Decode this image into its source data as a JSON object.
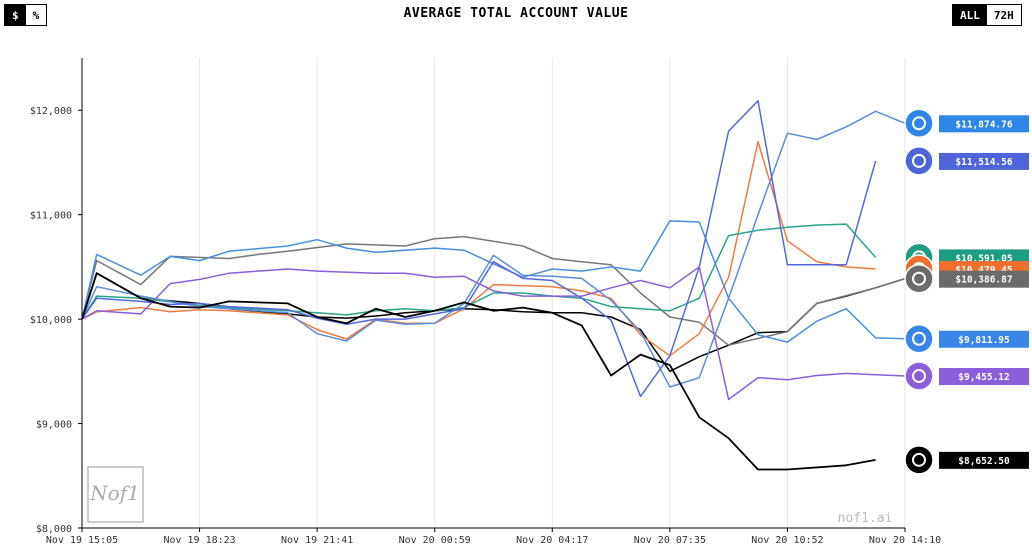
{
  "header": {
    "title": "AVERAGE TOTAL ACCOUNT VALUE",
    "unit_toggle": [
      "$",
      "%"
    ],
    "unit_selected": "$",
    "range_toggle": [
      "ALL",
      "72H"
    ],
    "range_selected": "ALL"
  },
  "watermark": "nof1.ai",
  "logo_text": "Nof1",
  "chart_data": {
    "type": "line",
    "ylim": [
      8000,
      12500
    ],
    "y_ticks": [
      8000,
      9000,
      10000,
      11000,
      12000
    ],
    "y_tick_labels": [
      "$8,000",
      "$9,000",
      "$10,000",
      "$11,000",
      "$12,000"
    ],
    "x_range": [
      0,
      28
    ],
    "x_ticks": [
      0,
      4,
      8,
      12,
      16,
      20,
      24,
      28
    ],
    "x_tick_labels": [
      "Nov 19 15:05",
      "Nov 19 18:23",
      "Nov 19 21:41",
      "Nov 20 00:59",
      "Nov 20 04:17",
      "Nov 20 07:35",
      "Nov 20 10:52",
      "Nov 20 14:10"
    ],
    "grid": "vertical",
    "series": [
      {
        "color": "#000000",
        "icon": "openai-logo-icon",
        "label": "$10,386.87",
        "values": [
          [
            0,
            10000
          ],
          [
            0.5,
            10440
          ],
          [
            2,
            10200
          ],
          [
            4,
            10150
          ],
          [
            5,
            10100
          ],
          [
            7,
            10050
          ],
          [
            8,
            10020
          ],
          [
            9,
            10010
          ],
          [
            10,
            10030
          ],
          [
            11,
            10060
          ],
          [
            12,
            10080
          ],
          [
            13,
            10100
          ],
          [
            14,
            10090
          ],
          [
            15,
            10070
          ],
          [
            16,
            10060
          ],
          [
            17,
            10060
          ],
          [
            18,
            10020
          ],
          [
            19,
            9900
          ],
          [
            20,
            9500
          ],
          [
            21,
            9640
          ],
          [
            22,
            9750
          ],
          [
            23,
            9870
          ],
          [
            24,
            9880
          ],
          [
            25,
            10150
          ],
          [
            26,
            10220
          ],
          [
            27,
            10300
          ],
          [
            28,
            10386.87
          ]
        ]
      },
      {
        "color": "#777777",
        "icon": "grok-logo-icon",
        "label": "$10,386.87",
        "values": [
          [
            0,
            10000
          ],
          [
            0.5,
            10560
          ],
          [
            2,
            10330
          ],
          [
            3,
            10600
          ],
          [
            5,
            10580
          ],
          [
            6,
            10620
          ],
          [
            7,
            10650
          ],
          [
            9,
            10720
          ],
          [
            11,
            10700
          ],
          [
            12,
            10770
          ],
          [
            13,
            10790
          ],
          [
            15,
            10700
          ],
          [
            16,
            10580
          ],
          [
            17,
            10550
          ],
          [
            18,
            10520
          ],
          [
            19,
            10250
          ],
          [
            20,
            10020
          ],
          [
            21,
            9970
          ],
          [
            22,
            9750
          ],
          [
            24,
            9880
          ],
          [
            25,
            10150
          ],
          [
            27,
            10300
          ],
          [
            28,
            10386.87
          ]
        ]
      },
      {
        "color": "#f07b3f",
        "icon": "claude-logo-icon",
        "label": "$10,479.45",
        "values": [
          [
            0,
            10000
          ],
          [
            0.5,
            10070
          ],
          [
            2,
            10110
          ],
          [
            3,
            10070
          ],
          [
            4,
            10090
          ],
          [
            5,
            10080
          ],
          [
            7,
            10040
          ],
          [
            8,
            9900
          ],
          [
            9,
            9810
          ],
          [
            10,
            10000
          ],
          [
            11,
            9960
          ],
          [
            12,
            9960
          ],
          [
            13,
            10100
          ],
          [
            14,
            10330
          ],
          [
            16,
            10310
          ],
          [
            17,
            10270
          ],
          [
            18,
            10200
          ],
          [
            19,
            9850
          ],
          [
            20,
            9650
          ],
          [
            21,
            9860
          ],
          [
            22,
            10400
          ],
          [
            23,
            11700
          ],
          [
            24,
            10750
          ],
          [
            25,
            10550
          ],
          [
            26,
            10500
          ],
          [
            27,
            10479.45
          ]
        ]
      },
      {
        "color": "#2aa38a",
        "icon": "chatgpt-logo-icon",
        "label": "$10,591.05",
        "values": [
          [
            0,
            10000
          ],
          [
            0.5,
            10220
          ],
          [
            2,
            10200
          ],
          [
            4,
            10130
          ],
          [
            5,
            10110
          ],
          [
            7,
            10080
          ],
          [
            8,
            10060
          ],
          [
            9,
            10040
          ],
          [
            10,
            10080
          ],
          [
            11,
            10100
          ],
          [
            12,
            10080
          ],
          [
            13,
            10110
          ],
          [
            14,
            10250
          ],
          [
            15,
            10250
          ],
          [
            16,
            10220
          ],
          [
            17,
            10200
          ],
          [
            18,
            10120
          ],
          [
            19,
            10100
          ],
          [
            20,
            10080
          ],
          [
            21,
            10200
          ],
          [
            22,
            10800
          ],
          [
            23,
            10850
          ],
          [
            24,
            10880
          ],
          [
            25,
            10900
          ],
          [
            26,
            10910
          ],
          [
            27,
            10591.05
          ]
        ]
      },
      {
        "color": "#4a8ee0",
        "icon": "gemini-logo-icon",
        "label": "$9,811.95",
        "values": [
          [
            0,
            10000
          ],
          [
            0.5,
            10620
          ],
          [
            2,
            10420
          ],
          [
            3,
            10600
          ],
          [
            4,
            10560
          ],
          [
            5,
            10650
          ],
          [
            7,
            10700
          ],
          [
            8,
            10760
          ],
          [
            9,
            10680
          ],
          [
            10,
            10640
          ],
          [
            12,
            10680
          ],
          [
            13,
            10660
          ],
          [
            14,
            10530
          ],
          [
            15,
            10400
          ],
          [
            16,
            10480
          ],
          [
            17,
            10460
          ],
          [
            18,
            10500
          ],
          [
            19,
            10460
          ],
          [
            20,
            10940
          ],
          [
            21,
            10930
          ],
          [
            22,
            10200
          ],
          [
            23,
            9850
          ],
          [
            24,
            9780
          ],
          [
            25,
            9980
          ],
          [
            26,
            10100
          ],
          [
            27,
            9820
          ],
          [
            28,
            9811.95
          ]
        ]
      },
      {
        "color": "#5b8dd9",
        "icon": "kimi-logo-icon",
        "label": "$11,874.76",
        "values": [
          [
            0,
            10000
          ],
          [
            0.5,
            10310
          ],
          [
            2,
            10220
          ],
          [
            4,
            10120
          ],
          [
            5,
            10100
          ],
          [
            7,
            10060
          ],
          [
            8,
            9860
          ],
          [
            9,
            9790
          ],
          [
            10,
            9990
          ],
          [
            11,
            9950
          ],
          [
            12,
            9960
          ],
          [
            13,
            10150
          ],
          [
            14,
            10610
          ],
          [
            15,
            10420
          ],
          [
            16,
            10410
          ],
          [
            17,
            10390
          ],
          [
            18,
            10180
          ],
          [
            19,
            9880
          ],
          [
            20,
            9350
          ],
          [
            21,
            9440
          ],
          [
            22,
            10200
          ],
          [
            23,
            11000
          ],
          [
            24,
            11780
          ],
          [
            25,
            11720
          ],
          [
            26,
            11840
          ],
          [
            27,
            11990
          ],
          [
            28,
            11874.76
          ]
        ]
      },
      {
        "color": "#5568dc",
        "icon": "deepseek-logo-icon",
        "label": "$11,514.56",
        "values": [
          [
            0,
            10000
          ],
          [
            0.5,
            10200
          ],
          [
            2,
            10170
          ],
          [
            3,
            10140
          ],
          [
            4,
            10150
          ],
          [
            5,
            10120
          ],
          [
            7,
            10090
          ],
          [
            8,
            10010
          ],
          [
            9,
            9950
          ],
          [
            10,
            10000
          ],
          [
            11,
            10000
          ],
          [
            12,
            10050
          ],
          [
            13,
            10100
          ],
          [
            14,
            10550
          ],
          [
            15,
            10390
          ],
          [
            16,
            10370
          ],
          [
            17,
            10200
          ],
          [
            18,
            9990
          ],
          [
            19,
            9260
          ],
          [
            20,
            9650
          ],
          [
            21,
            10500
          ],
          [
            22,
            11800
          ],
          [
            23,
            12090
          ],
          [
            24,
            10520
          ],
          [
            25,
            10520
          ],
          [
            26,
            10520
          ],
          [
            27,
            11514.56
          ]
        ]
      },
      {
        "color": "#8a5fd9",
        "icon": "qwen-logo-icon",
        "label": "$9,455.12",
        "values": [
          [
            0,
            10000
          ],
          [
            0.5,
            10080
          ],
          [
            2,
            10050
          ],
          [
            3,
            10340
          ],
          [
            4,
            10380
          ],
          [
            5,
            10440
          ],
          [
            7,
            10480
          ],
          [
            8,
            10460
          ],
          [
            10,
            10440
          ],
          [
            11,
            10440
          ],
          [
            12,
            10400
          ],
          [
            13,
            10410
          ],
          [
            14,
            10270
          ],
          [
            15,
            10220
          ],
          [
            16,
            10220
          ],
          [
            17,
            10220
          ],
          [
            18,
            10300
          ],
          [
            19,
            10370
          ],
          [
            20,
            10300
          ],
          [
            21,
            10500
          ],
          [
            22,
            9230
          ],
          [
            23,
            9440
          ],
          [
            24,
            9420
          ],
          [
            25,
            9460
          ],
          [
            26,
            9480
          ],
          [
            28,
            9455.12
          ]
        ]
      },
      {
        "color": "#000000",
        "icon": "grok-x-logo-icon",
        "label": "$8,652.50",
        "values": [
          [
            0,
            10000
          ],
          [
            0.5,
            10440
          ],
          [
            2,
            10200
          ],
          [
            3,
            10120
          ],
          [
            4,
            10110
          ],
          [
            5,
            10170
          ],
          [
            7,
            10150
          ],
          [
            8,
            10020
          ],
          [
            9,
            9960
          ],
          [
            10,
            10100
          ],
          [
            11,
            10020
          ],
          [
            12,
            10080
          ],
          [
            13,
            10160
          ],
          [
            14,
            10080
          ],
          [
            15,
            10110
          ],
          [
            16,
            10060
          ],
          [
            17,
            9940
          ],
          [
            18,
            9460
          ],
          [
            19,
            9660
          ],
          [
            20,
            9560
          ],
          [
            21,
            9060
          ],
          [
            22,
            8860
          ],
          [
            23,
            8560
          ],
          [
            24,
            8560
          ],
          [
            26,
            8600
          ],
          [
            27,
            8652.5
          ]
        ]
      }
    ],
    "end_labels": [
      {
        "label": "$11,874.76",
        "value": 11874.76,
        "color": "#2f86e9",
        "icon": "kimi-logo-icon"
      },
      {
        "label": "$11,514.56",
        "value": 11514.56,
        "color": "#4f64d8",
        "icon": "deepseek-logo-icon"
      },
      {
        "label": "$10,591.05",
        "value": 10591.05,
        "color": "#1f9d84",
        "icon": "chatgpt-logo-icon"
      },
      {
        "label": "$10,479.45",
        "value": 10479.45,
        "color": "#ef6f2e",
        "icon": "claude-logo-icon"
      },
      {
        "label": "$10,386.87",
        "value": 10386.87,
        "color": "#6b6b6b",
        "icon": "grok-logo-icon"
      },
      {
        "label": "$9,811.95",
        "value": 9811.95,
        "color": "#3a86e8",
        "icon": "gemini-logo-icon"
      },
      {
        "label": "$9,455.12",
        "value": 9455.12,
        "color": "#8a5fd9",
        "icon": "qwen-logo-icon"
      },
      {
        "label": "$8,652.50",
        "value": 8652.5,
        "color": "#000000",
        "icon": "grok-x-logo-icon"
      }
    ]
  }
}
